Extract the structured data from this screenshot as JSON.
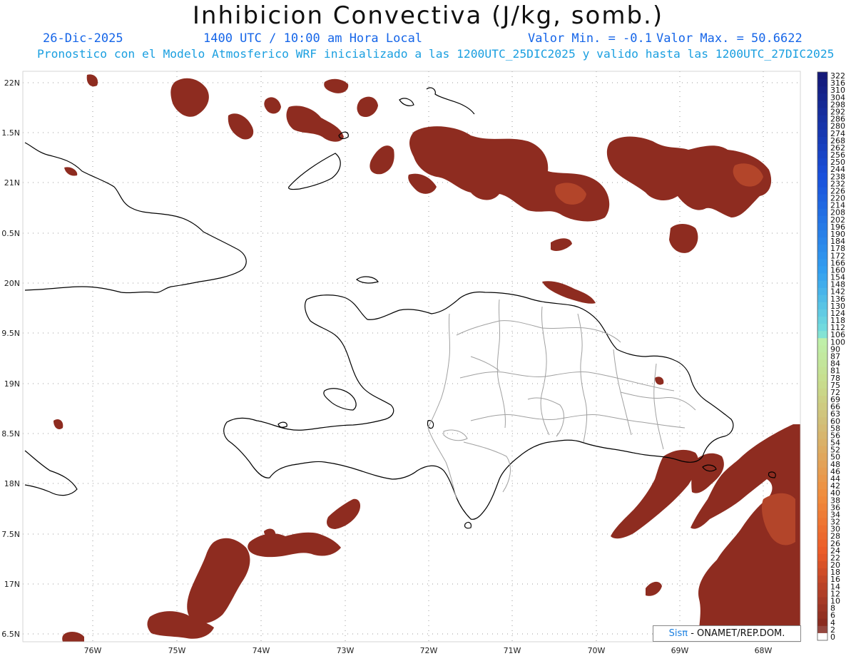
{
  "header": {
    "title": "Inhibicion Convectiva (J/kg, somb.)",
    "date": "26-Dic-2025",
    "time": "1400 UTC / 10:00 am Hora Local",
    "min_label": "Valor Min. = -0.1",
    "max_label": "Valor Max. = 50.6622",
    "description": "Pronostico con el Modelo Atmosferico WRF inicializado a las 1200UTC_25DIC2025 y valido hasta las  1200UTC_27DIC2025"
  },
  "map": {
    "lat_labels": [
      "22N",
      "1.5N",
      "21N",
      "0.5N",
      "20N",
      "9.5N",
      "19N",
      "8.5N",
      "18N",
      "7.5N",
      "17N",
      "6.5N"
    ],
    "lon_labels": [
      "76W",
      "75W",
      "74W",
      "73W",
      "72W",
      "71W",
      "70W",
      "69W",
      "68W"
    ],
    "fill_color": "#8e2c20",
    "fill_color_light": "#c0502a",
    "coast_color": "#000000",
    "province_color": "#a0a0a0"
  },
  "colorbar": {
    "labels": [
      "322",
      "316",
      "310",
      "304",
      "298",
      "292",
      "286",
      "280",
      "274",
      "268",
      "262",
      "256",
      "250",
      "244",
      "238",
      "232",
      "226",
      "220",
      "214",
      "208",
      "202",
      "196",
      "190",
      "184",
      "178",
      "172",
      "166",
      "160",
      "154",
      "148",
      "142",
      "136",
      "130",
      "124",
      "118",
      "112",
      "106",
      "100",
      "90",
      "87",
      "84",
      "81",
      "78",
      "75",
      "72",
      "69",
      "66",
      "63",
      "60",
      "58",
      "56",
      "54",
      "52",
      "50",
      "48",
      "46",
      "44",
      "42",
      "40",
      "38",
      "36",
      "34",
      "32",
      "30",
      "28",
      "26",
      "24",
      "22",
      "20",
      "18",
      "16",
      "14",
      "12",
      "10",
      "8",
      "6",
      "4",
      "2",
      "0"
    ]
  },
  "footer": {
    "brand": "Sisπ",
    "org": "- ONAMET/REP.DOM."
  }
}
